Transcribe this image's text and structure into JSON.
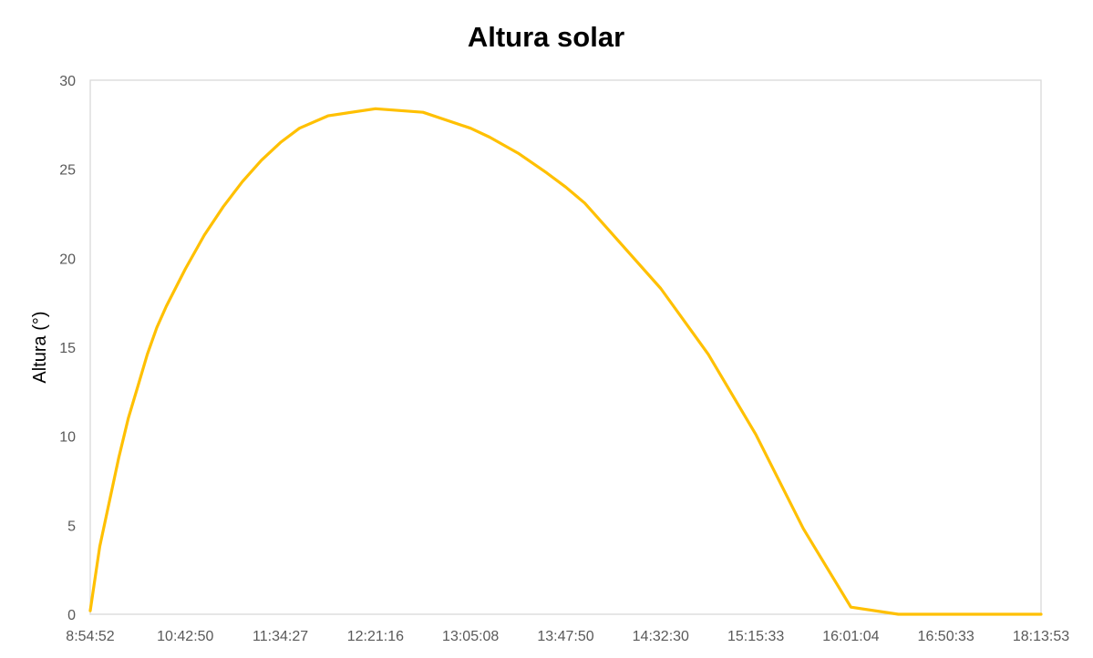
{
  "chart_data": {
    "type": "line",
    "title": "Altura solar",
    "xlabel": "",
    "ylabel": "Altura (°)",
    "ylim": [
      0,
      30
    ],
    "yticks": [
      0,
      5,
      10,
      15,
      20,
      25,
      30
    ],
    "xtick_labels": [
      "8:54:52",
      "10:42:50",
      "11:34:27",
      "12:21:16",
      "13:05:08",
      "13:47:50",
      "14:32:30",
      "15:15:33",
      "16:01:04",
      "16:50:33",
      "18:13:53"
    ],
    "grid": false,
    "legend": "none",
    "series": [
      {
        "name": "",
        "color": "#FFC000",
        "x_index": [
          0,
          0.1,
          0.3,
          0.4,
          0.5,
          0.6,
          0.7,
          0.8,
          1,
          1.2,
          1.4,
          1.6,
          1.8,
          2,
          2.2,
          2.5,
          3,
          3.5,
          4,
          4.2,
          4.5,
          4.8,
          5,
          5.2,
          5.5,
          6,
          6.5,
          7,
          7.5,
          8,
          8.5,
          8.8,
          9,
          9.2,
          9.5,
          9.7,
          9.85,
          9.95,
          10
        ],
        "values": [
          0.2,
          3.8,
          8.8,
          11.0,
          12.8,
          14.6,
          16.1,
          17.3,
          19.4,
          21.3,
          22.9,
          24.3,
          25.5,
          26.5,
          27.3,
          28.0,
          28.4,
          28.2,
          27.3,
          26.8,
          25.9,
          24.8,
          24.0,
          23.1,
          21.3,
          18.3,
          14.6,
          10.1,
          4.8,
          0.4,
          0,
          0,
          0,
          0,
          0,
          0,
          0,
          0,
          0
        ]
      }
    ]
  }
}
